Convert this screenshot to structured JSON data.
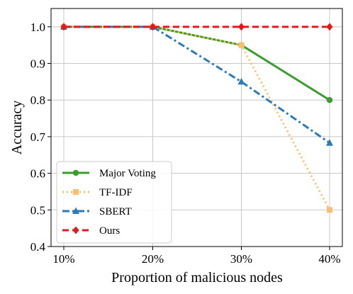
{
  "chart_data": {
    "type": "line",
    "title": "",
    "xlabel": "Proportion of malicious nodes",
    "ylabel": "Accuracy",
    "categories": [
      "10%",
      "20%",
      "30%",
      "40%"
    ],
    "ylim": [
      0.4,
      1.05
    ],
    "yticks": [
      0.4,
      0.5,
      0.6,
      0.7,
      0.8,
      0.9,
      1.0
    ],
    "ytick_labels": [
      "0.4",
      "0.5",
      "0.6",
      "0.7",
      "0.8",
      "0.9",
      "1.0"
    ],
    "grid": true,
    "legend_position": "lower-left",
    "series": [
      {
        "name": "Major Voting",
        "values": [
          1.0,
          1.0,
          0.95,
          0.8
        ],
        "color": "#3a9d2e",
        "dash": "solid",
        "marker": "circle"
      },
      {
        "name": "TF-IDF",
        "values": [
          1.0,
          1.0,
          0.95,
          0.5
        ],
        "color": "#fdbe6c",
        "dash": "dotted",
        "marker": "square"
      },
      {
        "name": "SBERT",
        "values": [
          1.0,
          1.0,
          0.85,
          0.683
        ],
        "color": "#2b7bb9",
        "dash": "dashdot",
        "marker": "triangle"
      },
      {
        "name": "Ours",
        "values": [
          1.0,
          1.0,
          1.0,
          1.0
        ],
        "color": "#e31a1c",
        "dash": "dashed",
        "marker": "diamond"
      }
    ]
  }
}
